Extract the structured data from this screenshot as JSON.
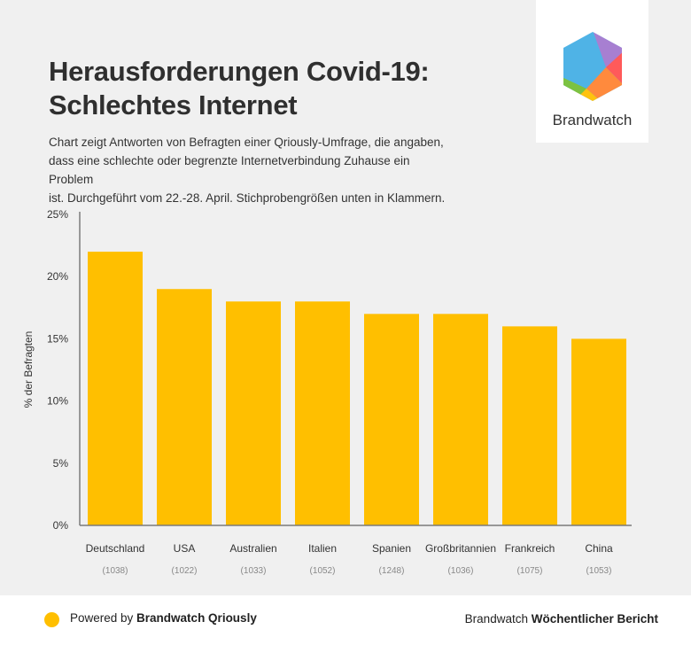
{
  "header": {
    "title_line1": "Herausforderungen Covid-19:",
    "title_line2": "Schlechtes Internet",
    "subtitle_line1": "Chart zeigt Antworten von Befragten einer Qriously-Umfrage, die angaben,",
    "subtitle_line2": "dass eine schlechte oder begrenzte Internetverbindung Zuhause ein Problem",
    "subtitle_line3": "ist. Durchgeführt vom 22.-28. April. Stichprobengrößen unten in Klammern."
  },
  "logo": {
    "text": "Brandwatch"
  },
  "colors": {
    "bar": "#ffbf00",
    "axis": "#7a7a7a",
    "background": "#f0f0f0"
  },
  "chart_data": {
    "type": "bar",
    "title": "Herausforderungen Covid-19: Schlechtes Internet",
    "xlabel": "",
    "ylabel": "% der Befragten",
    "ylim": [
      0,
      25
    ],
    "yticks": [
      0,
      5,
      10,
      15,
      20,
      25
    ],
    "ytick_labels": [
      "0%",
      "5%",
      "10%",
      "15%",
      "20%",
      "25%"
    ],
    "categories": [
      "Deutschland",
      "USA",
      "Australien",
      "Italien",
      "Spanien",
      "Großbritannien",
      "Frankreich",
      "China"
    ],
    "sample_sizes": [
      "(1038)",
      "(1022)",
      "(1033)",
      "(1052)",
      "(1248)",
      "(1036)",
      "(1075)",
      "(1053)"
    ],
    "values": [
      22,
      19,
      18,
      18,
      17,
      17,
      16,
      15
    ],
    "grid": false
  },
  "footer": {
    "powered_prefix": "Powered by ",
    "powered_brand": "Brandwatch Qriously",
    "right_prefix": "Brandwatch ",
    "right_bold": "Wöchentlicher Bericht"
  }
}
